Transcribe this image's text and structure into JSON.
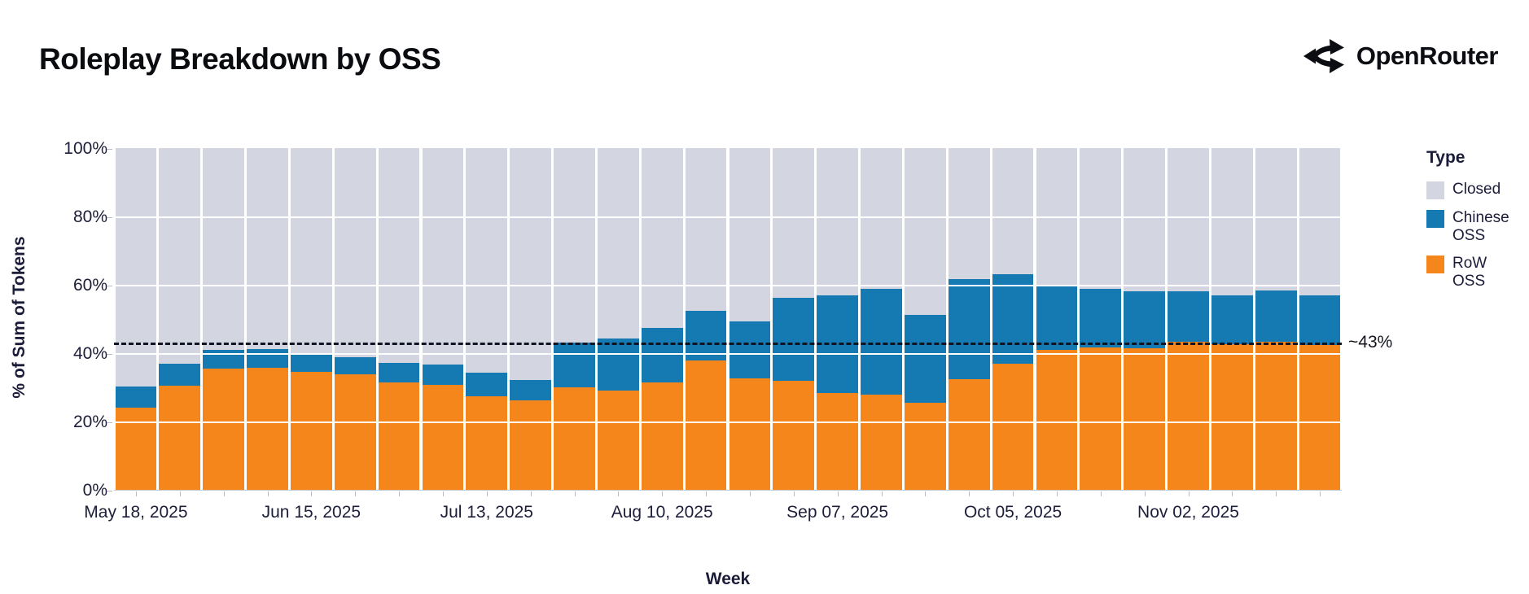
{
  "header": {
    "title": "Roleplay Breakdown by OSS",
    "brand": "OpenRouter",
    "brand_icon": "openrouter-split-arrows"
  },
  "chart_data": {
    "type": "bar",
    "stacked": true,
    "percent_scale": true,
    "title": "Roleplay Breakdown by OSS",
    "xlabel": "Week",
    "ylabel": "% of Sum of Tokens",
    "ylim": [
      0,
      100
    ],
    "y_tick_labels": [
      "0%",
      "20%",
      "40%",
      "60%",
      "80%",
      "100%"
    ],
    "y_tick_values": [
      0,
      20,
      40,
      60,
      80,
      100
    ],
    "gridline_values": [
      20,
      40,
      60,
      80
    ],
    "categories": [
      "May 18, 2025",
      "May 25, 2025",
      "Jun 01, 2025",
      "Jun 08, 2025",
      "Jun 15, 2025",
      "Jun 22, 2025",
      "Jun 29, 2025",
      "Jul 06, 2025",
      "Jul 13, 2025",
      "Jul 20, 2025",
      "Jul 27, 2025",
      "Aug 03, 2025",
      "Aug 10, 2025",
      "Aug 17, 2025",
      "Aug 24, 2025",
      "Aug 31, 2025",
      "Sep 07, 2025",
      "Sep 14, 2025",
      "Sep 21, 2025",
      "Sep 28, 2025",
      "Oct 05, 2025",
      "Oct 12, 2025",
      "Oct 19, 2025",
      "Oct 26, 2025",
      "Nov 02, 2025",
      "Nov 09, 2025",
      "Nov 16, 2025",
      "Nov 23, 2025"
    ],
    "x_tick_shown_indices": [
      0,
      4,
      8,
      12,
      16,
      20,
      24
    ],
    "series": [
      {
        "name": "RoW OSS",
        "color": "#F5861B",
        "values": [
          24.0,
          30.5,
          35.4,
          35.6,
          34.6,
          33.9,
          31.4,
          30.6,
          27.5,
          26.1,
          29.9,
          29.0,
          31.4,
          37.9,
          32.6,
          31.8,
          28.4,
          27.8,
          25.4,
          32.3,
          37.0,
          40.9,
          41.6,
          41.5,
          43.3,
          42.6,
          43.3,
          42.5
        ]
      },
      {
        "name": "Chinese OSS",
        "color": "#1579B2",
        "values": [
          6.3,
          6.3,
          5.5,
          5.5,
          5.3,
          5.0,
          5.8,
          6.0,
          6.7,
          6.1,
          13.2,
          15.4,
          16.0,
          14.6,
          16.7,
          24.5,
          28.4,
          30.9,
          25.8,
          29.3,
          26.0,
          19.1,
          17.1,
          16.7,
          14.7,
          14.4,
          15.1,
          14.4
        ]
      },
      {
        "name": "Closed",
        "color": "#D3D5E0",
        "values": [
          69.7,
          63.2,
          59.1,
          58.9,
          60.1,
          61.1,
          62.8,
          63.4,
          65.8,
          67.8,
          56.9,
          55.6,
          52.6,
          47.5,
          50.7,
          43.7,
          43.2,
          41.3,
          48.8,
          38.4,
          37.0,
          40.0,
          41.3,
          41.8,
          42.0,
          43.0,
          41.6,
          43.1
        ]
      }
    ],
    "annotation": {
      "label": "~43%",
      "value": 43,
      "line_style": "dashed",
      "line_color": "#0f1322"
    },
    "legend": {
      "title": "Type",
      "position": "right",
      "entries": [
        {
          "label": "Closed",
          "color": "#D3D5E0"
        },
        {
          "label": "Chinese OSS",
          "color": "#1579B2"
        },
        {
          "label": "RoW OSS",
          "color": "#F5861B"
        }
      ]
    }
  }
}
